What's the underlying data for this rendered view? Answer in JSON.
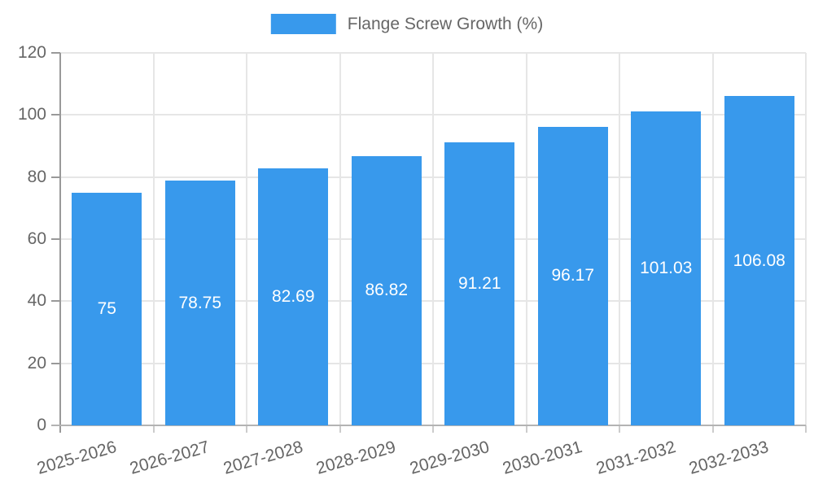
{
  "legend": {
    "label": "Flange Screw Growth (%)"
  },
  "chart_data": {
    "type": "bar",
    "title": "Flange Screw Growth (%)",
    "categories": [
      "2025-2026",
      "2026-2027",
      "2027-2028",
      "2028-2029",
      "2029-2030",
      "2030-2031",
      "2031-2032",
      "2032-2033"
    ],
    "values": [
      75,
      78.75,
      82.69,
      86.82,
      91.21,
      96.17,
      101.03,
      106.08
    ],
    "value_labels": [
      "75",
      "78.75",
      "82.69",
      "86.82",
      "91.21",
      "96.17",
      "101.03",
      "106.08"
    ],
    "xlabel": "",
    "ylabel": "",
    "ylim": [
      0,
      120
    ],
    "y_ticks": [
      0,
      20,
      40,
      60,
      80,
      100,
      120
    ],
    "legend_position": "top",
    "grid": true,
    "value_labels_position": "center-inside",
    "colors": {
      "bar": "#3899ec",
      "axis_label": "#666666",
      "grid_line": "#e6e6e6",
      "y_axis_line": "#999999",
      "x_axis_line": "#b3b3b3",
      "x_boundary_tick": "#cccccc",
      "value_label": "#ffffff",
      "background": "#ffffff"
    }
  }
}
